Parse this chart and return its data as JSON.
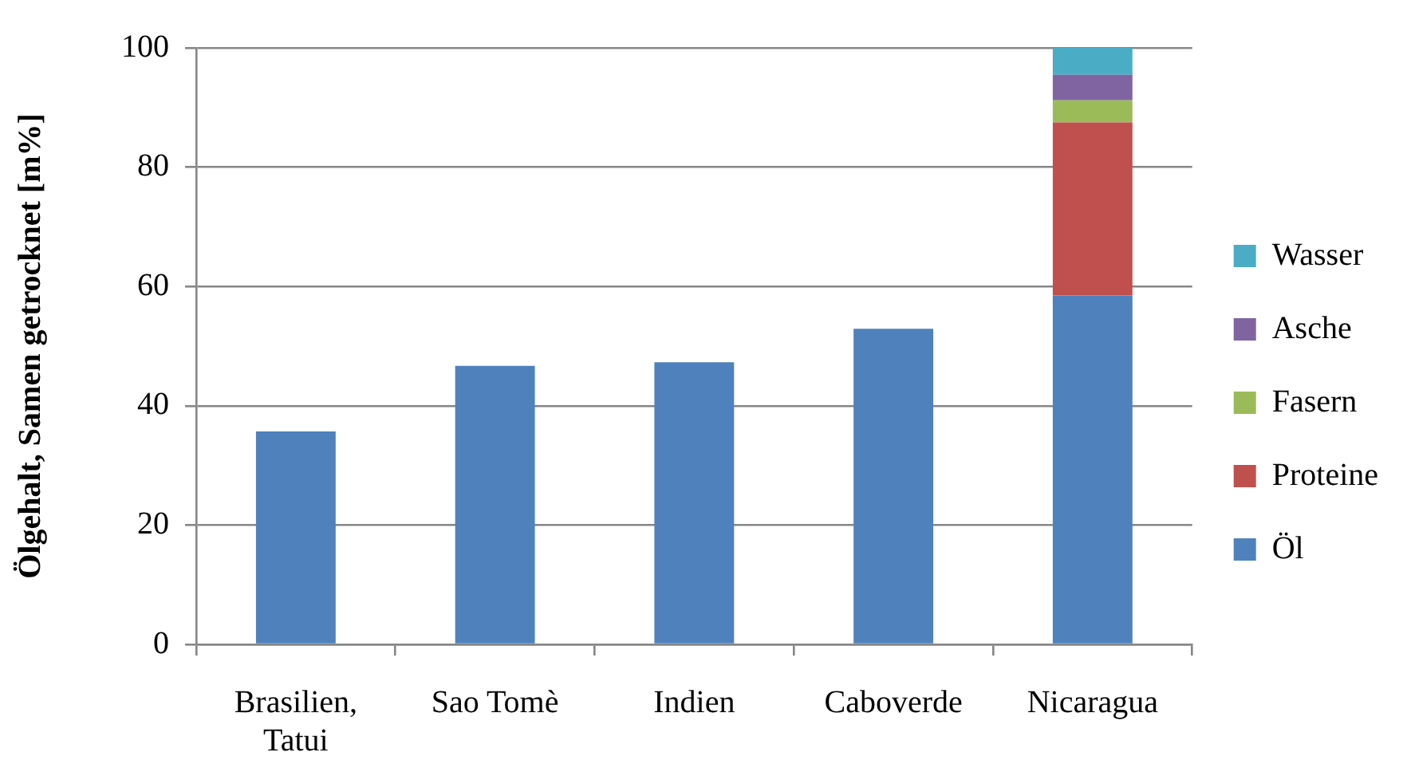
{
  "chart_data": {
    "type": "bar",
    "stacked": true,
    "ylabel": "Ölgehalt, Samen getrocknet [m%]",
    "categories": [
      "Brasilien, Tatui",
      "Sao Tomè",
      "Indien",
      "Caboverde",
      "Nicaragua"
    ],
    "series": [
      {
        "name": "Öl",
        "color": "#4f81bd",
        "values": [
          35.7,
          46.7,
          47.3,
          52.9,
          58.5
        ]
      },
      {
        "name": "Proteine",
        "color": "#c0504d",
        "values": [
          null,
          null,
          null,
          null,
          29
        ]
      },
      {
        "name": "Fasern",
        "color": "#9bbb59",
        "values": [
          null,
          null,
          null,
          null,
          3.7
        ]
      },
      {
        "name": "Asche",
        "color": "#8064a2",
        "values": [
          null,
          null,
          null,
          null,
          4.3
        ]
      },
      {
        "name": "Wasser",
        "color": "#4bacc6",
        "values": [
          null,
          null,
          null,
          null,
          4.5
        ]
      }
    ],
    "ylim": [
      0,
      100
    ],
    "yticks": [
      0,
      20,
      40,
      60,
      80,
      100
    ],
    "grid": "y",
    "legend": "right"
  }
}
